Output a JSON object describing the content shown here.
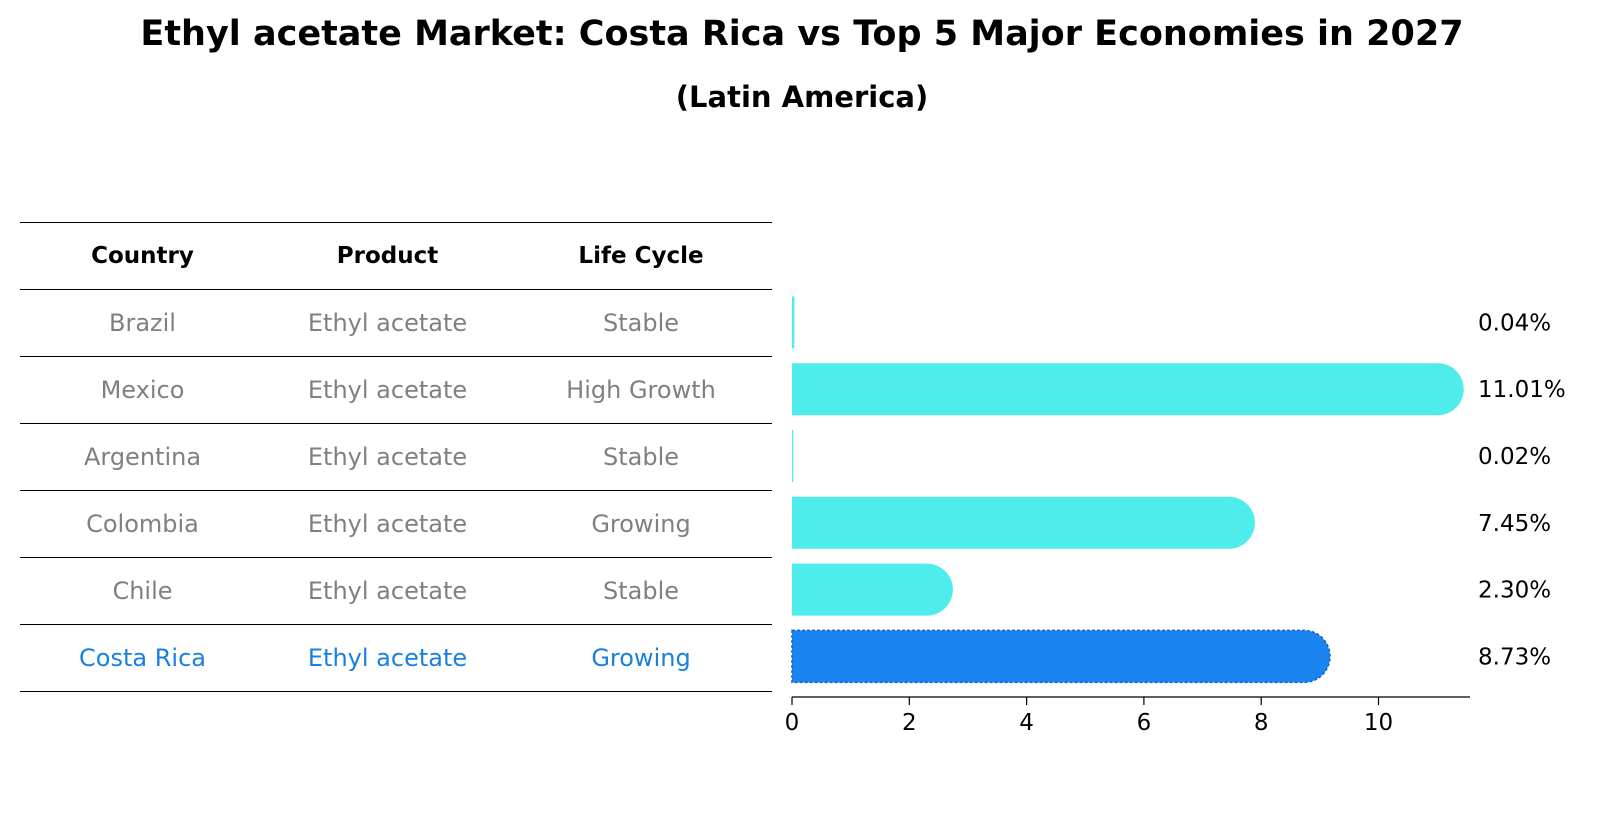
{
  "title": "Ethyl acetate Market: Costa Rica vs Top 5 Major Economies in 2027",
  "subtitle": "(Latin America)",
  "table": {
    "headers": [
      "Country",
      "Product",
      "Life Cycle"
    ],
    "rows": [
      {
        "country": "Brazil",
        "product": "Ethyl acetate",
        "life_cycle": "Stable"
      },
      {
        "country": "Mexico",
        "product": "Ethyl acetate",
        "life_cycle": "High Growth"
      },
      {
        "country": "Argentina",
        "product": "Ethyl acetate",
        "life_cycle": "Stable"
      },
      {
        "country": "Colombia",
        "product": "Ethyl acetate",
        "life_cycle": "Growing"
      },
      {
        "country": "Chile",
        "product": "Ethyl acetate",
        "life_cycle": "Stable"
      },
      {
        "country": "Costa Rica",
        "product": "Ethyl acetate",
        "life_cycle": "Growing"
      }
    ]
  },
  "colors": {
    "bar": "#4eecea",
    "highlight_bar": "#1a84f0",
    "highlight_text": "#1a80e0",
    "muted_text": "#808080"
  },
  "chart_data": {
    "type": "bar",
    "orientation": "horizontal",
    "title": "Ethyl acetate Market: Costa Rica vs Top 5 Major Economies in 2027",
    "subtitle": "(Latin America)",
    "categories": [
      "Brazil",
      "Mexico",
      "Argentina",
      "Colombia",
      "Chile",
      "Costa Rica"
    ],
    "values": [
      0.04,
      11.01,
      0.02,
      7.45,
      2.3,
      8.73
    ],
    "value_labels": [
      "0.04%",
      "11.01%",
      "0.02%",
      "7.45%",
      "2.30%",
      "8.73%"
    ],
    "highlight": "Costa Rica",
    "xlim": [
      0,
      11.56
    ],
    "xticks": [
      0,
      2,
      4,
      6,
      8,
      10
    ],
    "xlabel": "",
    "ylabel": "",
    "grid": false
  }
}
